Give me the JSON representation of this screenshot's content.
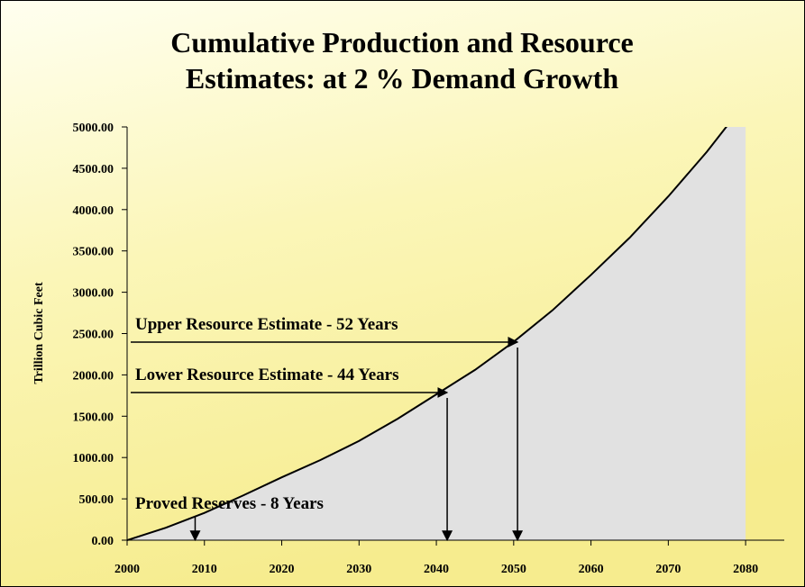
{
  "chart_data": {
    "type": "area",
    "title_lines": [
      "Cumulative Production and Resource",
      "Estimates: at 2 % Demand Growth"
    ],
    "y_label": "Trillion Cubic Feet",
    "x": [
      2000,
      2005,
      2010,
      2015,
      2020,
      2025,
      2030,
      2035,
      2040,
      2045,
      2050,
      2055,
      2060,
      2065,
      2070,
      2075,
      2080
    ],
    "values": [
      0,
      150,
      330,
      540,
      760,
      970,
      1200,
      1470,
      1765,
      2060,
      2400,
      2780,
      3210,
      3660,
      4160,
      4700,
      5300
    ],
    "color": "#e1e1e1",
    "xlim": [
      2000,
      2085
    ],
    "ylim": [
      0,
      5000
    ],
    "xticks": [
      2000,
      2010,
      2020,
      2030,
      2040,
      2050,
      2060,
      2070,
      2080
    ],
    "yticks": [
      {
        "value": 0,
        "label": "0.00"
      },
      {
        "value": 500,
        "label": "500.00"
      },
      {
        "value": 1000,
        "label": "1000.00"
      },
      {
        "value": 1500,
        "label": "1500.00"
      },
      {
        "value": 2000,
        "label": "2000.00"
      },
      {
        "value": 2500,
        "label": "2500.00"
      },
      {
        "value": 3000,
        "label": "3000.00"
      },
      {
        "value": 3500,
        "label": "3500.00"
      },
      {
        "value": 4000,
        "label": "4000.00"
      },
      {
        "value": 4500,
        "label": "4500.00"
      },
      {
        "value": 5000,
        "label": "5000.00"
      }
    ],
    "annotations": [
      {
        "text": "Upper Resource Estimate - 52 Years",
        "x": 2050.5,
        "y": 2397,
        "horizontal": true
      },
      {
        "text": "Lower Resource Estimate - 44 Years",
        "x": 2041.4,
        "y": 1787,
        "horizontal": true
      },
      {
        "text": "Proved Reserves - 8 Years",
        "x": 2008.8,
        "y": 283,
        "horizontal": false
      }
    ]
  }
}
